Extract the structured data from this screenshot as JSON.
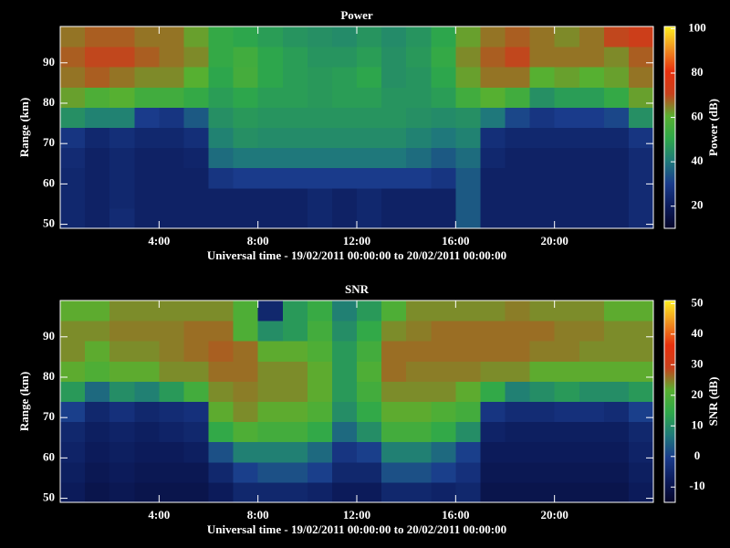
{
  "chart_data": [
    {
      "type": "heatmap",
      "title": "Power",
      "x_label": "Universal time - 19/02/2011 00:00:00 to 20/02/2011 00:00:00",
      "y_label": "Range (km)",
      "colorbar_label": "Power (dB)",
      "xlim": [
        0,
        24
      ],
      "ylim": [
        49,
        99
      ],
      "clim": [
        10,
        101
      ],
      "xticks": [
        {
          "value": 4,
          "label": "4:00"
        },
        {
          "value": 8,
          "label": "8:00"
        },
        {
          "value": 12,
          "label": "12:00"
        },
        {
          "value": 16,
          "label": "16:00"
        },
        {
          "value": 20,
          "label": "20:00"
        }
      ],
      "yticks": [
        50,
        60,
        70,
        80,
        90
      ],
      "cticks": [
        20,
        40,
        60,
        80,
        100
      ],
      "colormap": [
        "#06062a",
        "#0c1c5c",
        "#1a3c8c",
        "#1f7a7a",
        "#2ea84a",
        "#58b030",
        "#c8401c",
        "#e8300e",
        "#f09020",
        "#fff020"
      ],
      "x_bins": [
        0,
        1,
        2,
        3,
        4,
        5,
        6,
        7,
        8,
        9,
        10,
        11,
        12,
        13,
        14,
        15,
        16,
        17,
        18,
        19,
        20,
        21,
        22,
        23,
        24
      ],
      "y_bins": [
        49,
        54,
        59,
        64,
        69,
        74,
        79,
        84,
        89,
        94,
        99
      ],
      "z": [
        [
          24,
          22,
          25,
          22,
          22,
          22,
          22,
          22,
          22,
          22,
          24,
          22,
          24,
          22,
          22,
          22,
          35,
          22,
          22,
          22,
          22,
          22,
          22,
          25
        ],
        [
          24,
          22,
          24,
          22,
          22,
          22,
          22,
          22,
          22,
          22,
          24,
          22,
          24,
          22,
          22,
          22,
          35,
          22,
          22,
          22,
          22,
          22,
          22,
          25
        ],
        [
          24,
          22,
          24,
          22,
          22,
          22,
          28,
          30,
          30,
          30,
          30,
          30,
          30,
          30,
          30,
          28,
          35,
          22,
          22,
          22,
          22,
          22,
          22,
          25
        ],
        [
          25,
          22,
          24,
          22,
          22,
          23,
          38,
          40,
          40,
          40,
          40,
          40,
          40,
          40,
          38,
          35,
          38,
          24,
          22,
          22,
          22,
          22,
          22,
          25
        ],
        [
          28,
          24,
          26,
          24,
          24,
          26,
          42,
          45,
          44,
          44,
          44,
          44,
          44,
          44,
          42,
          40,
          42,
          26,
          24,
          24,
          24,
          24,
          24,
          28
        ],
        [
          45,
          42,
          42,
          30,
          28,
          35,
          45,
          47,
          46,
          46,
          46,
          46,
          46,
          46,
          45,
          44,
          45,
          40,
          32,
          28,
          30,
          30,
          32,
          45
        ],
        [
          62,
          58,
          60,
          55,
          55,
          52,
          48,
          50,
          48,
          48,
          47,
          48,
          48,
          46,
          46,
          48,
          55,
          60,
          55,
          45,
          48,
          48,
          52,
          62
        ],
        [
          66,
          68,
          66,
          64,
          64,
          60,
          50,
          56,
          50,
          48,
          47,
          48,
          50,
          45,
          46,
          50,
          62,
          66,
          66,
          60,
          62,
          60,
          62,
          66
        ],
        [
          68,
          70,
          70,
          68,
          66,
          64,
          52,
          55,
          50,
          48,
          46,
          46,
          48,
          45,
          47,
          52,
          64,
          68,
          70,
          66,
          66,
          66,
          64,
          68
        ],
        [
          66,
          68,
          68,
          66,
          66,
          62,
          52,
          50,
          48,
          46,
          45,
          44,
          46,
          44,
          46,
          50,
          62,
          66,
          68,
          66,
          64,
          66,
          70,
          72
        ]
      ]
    },
    {
      "type": "heatmap",
      "title": "SNR",
      "x_label": "Universal time - 19/02/2011 00:00:00 to 20/02/2011 00:00:00",
      "y_label": "Range (km)",
      "colorbar_label": "SNR (dB)",
      "xlim": [
        0,
        24
      ],
      "ylim": [
        49,
        99
      ],
      "clim": [
        -15,
        51
      ],
      "xticks": [
        {
          "value": 4,
          "label": "4:00"
        },
        {
          "value": 8,
          "label": "8:00"
        },
        {
          "value": 12,
          "label": "12:00"
        },
        {
          "value": 16,
          "label": "16:00"
        },
        {
          "value": 20,
          "label": "20:00"
        }
      ],
      "yticks": [
        50,
        60,
        70,
        80,
        90
      ],
      "cticks": [
        -10,
        0,
        10,
        20,
        30,
        40,
        50
      ],
      "colormap": [
        "#06062a",
        "#0c1c5c",
        "#1a3c8c",
        "#1f7a7a",
        "#2ea84a",
        "#58b030",
        "#c8401c",
        "#e8300e",
        "#f09020",
        "#fff020"
      ],
      "x_bins": [
        0,
        1,
        2,
        3,
        4,
        5,
        6,
        7,
        8,
        9,
        10,
        11,
        12,
        13,
        14,
        15,
        16,
        17,
        18,
        19,
        20,
        21,
        22,
        23,
        24
      ],
      "y_bins": [
        49,
        54,
        59,
        64,
        69,
        74,
        79,
        84,
        89,
        94,
        99
      ],
      "z": [
        [
          -8,
          -10,
          -9,
          -10,
          -10,
          -10,
          -8,
          -5,
          -5,
          -5,
          -6,
          -8,
          -8,
          -5,
          -5,
          -6,
          -5,
          -10,
          -10,
          -10,
          -10,
          -10,
          -10,
          -8
        ],
        [
          -7,
          -9,
          -8,
          -9,
          -9,
          -9,
          -5,
          0,
          2,
          2,
          0,
          -5,
          -5,
          2,
          2,
          0,
          -3,
          -9,
          -9,
          -9,
          -9,
          -9,
          -9,
          -7
        ],
        [
          -6,
          -8,
          -7,
          -8,
          -8,
          -7,
          2,
          8,
          8,
          8,
          5,
          -2,
          0,
          8,
          8,
          5,
          0,
          -8,
          -8,
          -8,
          -8,
          -8,
          -8,
          -6
        ],
        [
          -5,
          -7,
          -6,
          -7,
          -6,
          -5,
          15,
          20,
          18,
          18,
          15,
          5,
          10,
          18,
          18,
          15,
          10,
          -6,
          -7,
          -7,
          -7,
          -7,
          -7,
          -5
        ],
        [
          0,
          -5,
          -3,
          -5,
          -4,
          -3,
          22,
          24,
          22,
          22,
          20,
          10,
          15,
          22,
          22,
          20,
          18,
          -2,
          -4,
          -4,
          -3,
          -3,
          -4,
          0
        ],
        [
          12,
          5,
          10,
          8,
          12,
          18,
          24,
          25,
          24,
          24,
          22,
          12,
          18,
          24,
          24,
          24,
          22,
          15,
          8,
          10,
          12,
          10,
          10,
          12
        ],
        [
          22,
          20,
          22,
          22,
          24,
          24,
          26,
          26,
          24,
          24,
          22,
          12,
          20,
          26,
          25,
          25,
          25,
          24,
          24,
          22,
          22,
          22,
          22,
          22
        ],
        [
          24,
          22,
          24,
          24,
          25,
          26,
          27,
          26,
          22,
          22,
          20,
          12,
          18,
          26,
          26,
          26,
          26,
          26,
          26,
          25,
          25,
          24,
          24,
          24
        ],
        [
          24,
          24,
          25,
          25,
          25,
          26,
          26,
          20,
          10,
          12,
          18,
          10,
          15,
          24,
          25,
          26,
          26,
          26,
          26,
          26,
          25,
          25,
          24,
          24
        ],
        [
          22,
          22,
          24,
          24,
          24,
          24,
          24,
          20,
          -5,
          12,
          16,
          8,
          12,
          20,
          24,
          24,
          24,
          24,
          25,
          24,
          24,
          24,
          22,
          22
        ]
      ]
    }
  ]
}
